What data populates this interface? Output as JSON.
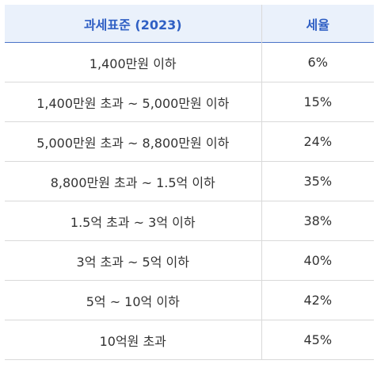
{
  "table": {
    "headers": [
      "과세표준 (2023)",
      "세율"
    ],
    "rows": [
      {
        "base": "1,400만원 이하",
        "rate": "6%"
      },
      {
        "base": "1,400만원 초과 ~ 5,000만원 이하",
        "rate": "15%"
      },
      {
        "base": "5,000만원 초과 ~ 8,800만원 이하",
        "rate": "24%"
      },
      {
        "base": "8,800만원 초과 ~ 1.5억 이하",
        "rate": "35%"
      },
      {
        "base": "1.5억 초과 ~ 3억 이하",
        "rate": "38%"
      },
      {
        "base": "3억 초과 ~ 5억 이하",
        "rate": "40%"
      },
      {
        "base": "5억 ~ 10억 이하",
        "rate": "42%"
      },
      {
        "base": "10억원 초과",
        "rate": "45%"
      }
    ]
  },
  "colors": {
    "header_bg": "#eaf1fb",
    "header_text": "#2f5fc4",
    "header_rule": "#4a73c8",
    "grid": "#d9d9d9",
    "body_text": "#333333"
  }
}
